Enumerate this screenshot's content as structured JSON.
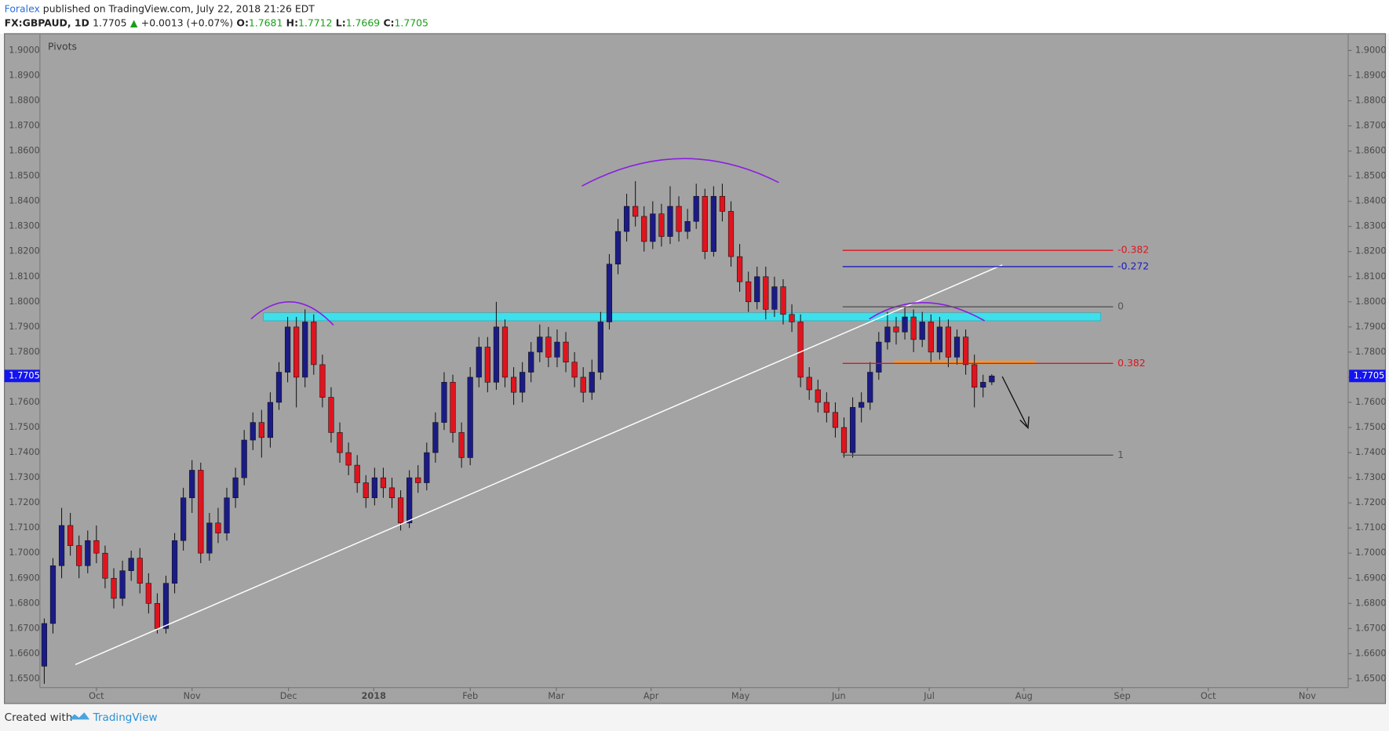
{
  "header": {
    "author": "Foralex",
    "published": "published on TradingView.com, July 22, 2018 21:26 EDT",
    "symbol": "FX:GBPAUD, 1D",
    "arrow": "▲",
    "change": "+0.0013 (+0.07%)",
    "o": "O:",
    "h": "H:",
    "l": "L:",
    "c": "C:"
  },
  "footer": {
    "created_with": "Created with",
    "brand": "TradingView"
  },
  "chart_data": {
    "type": "candlestick",
    "indicator": "Pivots",
    "up_color": "#1b1b86",
    "down_color": "#e0141e",
    "ylim": [
      1.6465,
      1.906
    ],
    "yticks": [
      {
        "value": 1.65,
        "label": "1.6500"
      },
      {
        "value": 1.66,
        "label": "1.6600"
      },
      {
        "value": 1.67,
        "label": "1.6700"
      },
      {
        "value": 1.68,
        "label": "1.6800"
      },
      {
        "value": 1.69,
        "label": "1.6900"
      },
      {
        "value": 1.7,
        "label": "1.7000"
      },
      {
        "value": 1.71,
        "label": "1.7100"
      },
      {
        "value": 1.72,
        "label": "1.7200"
      },
      {
        "value": 1.73,
        "label": "1.7300"
      },
      {
        "value": 1.74,
        "label": "1.7400"
      },
      {
        "value": 1.75,
        "label": "1.7500"
      },
      {
        "value": 1.76,
        "label": "1.7600"
      },
      {
        "value": 1.77,
        "label": "1.7700"
      },
      {
        "value": 1.78,
        "label": "1.7800"
      },
      {
        "value": 1.79,
        "label": "1.7900"
      },
      {
        "value": 1.8,
        "label": "1.8000"
      },
      {
        "value": 1.81,
        "label": "1.8100"
      },
      {
        "value": 1.82,
        "label": "1.8200"
      },
      {
        "value": 1.83,
        "label": "1.8300"
      },
      {
        "value": 1.84,
        "label": "1.8400"
      },
      {
        "value": 1.85,
        "label": "1.8500"
      },
      {
        "value": 1.86,
        "label": "1.8600"
      },
      {
        "value": 1.87,
        "label": "1.8700"
      },
      {
        "value": 1.88,
        "label": "1.8800"
      },
      {
        "value": 1.89,
        "label": "1.8900"
      },
      {
        "value": 1.9,
        "label": "1.9000"
      }
    ],
    "xlim": [
      -0.5,
      150
    ],
    "xticks": [
      {
        "value": 6,
        "label": "Oct"
      },
      {
        "value": 17,
        "label": "Nov"
      },
      {
        "value": 28.1,
        "label": "Dec"
      },
      {
        "value": 37.9,
        "label": "2018"
      },
      {
        "value": 49,
        "label": "Feb"
      },
      {
        "value": 58.9,
        "label": "Mar"
      },
      {
        "value": 69.8,
        "label": "Apr"
      },
      {
        "value": 80.1,
        "label": "May"
      },
      {
        "value": 91.4,
        "label": "Jun"
      },
      {
        "value": 101.8,
        "label": "Jul"
      },
      {
        "value": 112.7,
        "label": "Aug"
      },
      {
        "value": 124,
        "label": "Sep"
      },
      {
        "value": 133.9,
        "label": "Oct"
      },
      {
        "value": 145.3,
        "label": "Nov"
      }
    ],
    "ohlc": [
      [
        1.655,
        1.674,
        1.648,
        1.672
      ],
      [
        1.672,
        1.698,
        1.668,
        1.695
      ],
      [
        1.695,
        1.718,
        1.69,
        1.711
      ],
      [
        1.711,
        1.716,
        1.699,
        1.703
      ],
      [
        1.703,
        1.707,
        1.69,
        1.695
      ],
      [
        1.695,
        1.709,
        1.692,
        1.705
      ],
      [
        1.705,
        1.711,
        1.696,
        1.7
      ],
      [
        1.7,
        1.703,
        1.686,
        1.69
      ],
      [
        1.69,
        1.694,
        1.678,
        1.682
      ],
      [
        1.682,
        1.697,
        1.679,
        1.693
      ],
      [
        1.693,
        1.701,
        1.689,
        1.698
      ],
      [
        1.698,
        1.702,
        1.684,
        1.688
      ],
      [
        1.688,
        1.692,
        1.676,
        1.68
      ],
      [
        1.68,
        1.684,
        1.668,
        1.67
      ],
      [
        1.67,
        1.691,
        1.668,
        1.688
      ],
      [
        1.688,
        1.708,
        1.684,
        1.705
      ],
      [
        1.705,
        1.726,
        1.701,
        1.722
      ],
      [
        1.722,
        1.737,
        1.716,
        1.733
      ],
      [
        1.733,
        1.736,
        1.696,
        1.7
      ],
      [
        1.7,
        1.716,
        1.697,
        1.712
      ],
      [
        1.712,
        1.718,
        1.704,
        1.708
      ],
      [
        1.708,
        1.726,
        1.705,
        1.722
      ],
      [
        1.722,
        1.734,
        1.718,
        1.73
      ],
      [
        1.73,
        1.749,
        1.727,
        1.745
      ],
      [
        1.745,
        1.756,
        1.741,
        1.752
      ],
      [
        1.752,
        1.757,
        1.738,
        1.746
      ],
      [
        1.746,
        1.764,
        1.742,
        1.76
      ],
      [
        1.76,
        1.776,
        1.757,
        1.772
      ],
      [
        1.772,
        1.794,
        1.768,
        1.79
      ],
      [
        1.79,
        1.794,
        1.758,
        1.77
      ],
      [
        1.77,
        1.797,
        1.766,
        1.792
      ],
      [
        1.792,
        1.795,
        1.771,
        1.775
      ],
      [
        1.775,
        1.779,
        1.758,
        1.762
      ],
      [
        1.762,
        1.766,
        1.744,
        1.748
      ],
      [
        1.748,
        1.752,
        1.736,
        1.74
      ],
      [
        1.74,
        1.744,
        1.731,
        1.735
      ],
      [
        1.735,
        1.739,
        1.724,
        1.728
      ],
      [
        1.728,
        1.731,
        1.718,
        1.722
      ],
      [
        1.722,
        1.734,
        1.719,
        1.73
      ],
      [
        1.73,
        1.734,
        1.722,
        1.726
      ],
      [
        1.726,
        1.73,
        1.718,
        1.722
      ],
      [
        1.722,
        1.725,
        1.709,
        1.712
      ],
      [
        1.712,
        1.733,
        1.71,
        1.73
      ],
      [
        1.73,
        1.735,
        1.724,
        1.728
      ],
      [
        1.728,
        1.744,
        1.725,
        1.74
      ],
      [
        1.74,
        1.756,
        1.736,
        1.752
      ],
      [
        1.752,
        1.772,
        1.749,
        1.768
      ],
      [
        1.768,
        1.771,
        1.744,
        1.748
      ],
      [
        1.748,
        1.752,
        1.734,
        1.738
      ],
      [
        1.738,
        1.774,
        1.735,
        1.77
      ],
      [
        1.77,
        1.786,
        1.766,
        1.782
      ],
      [
        1.782,
        1.786,
        1.764,
        1.768
      ],
      [
        1.768,
        1.8,
        1.765,
        1.79
      ],
      [
        1.79,
        1.793,
        1.766,
        1.77
      ],
      [
        1.77,
        1.774,
        1.759,
        1.764
      ],
      [
        1.764,
        1.776,
        1.76,
        1.772
      ],
      [
        1.772,
        1.784,
        1.768,
        1.78
      ],
      [
        1.78,
        1.791,
        1.776,
        1.786
      ],
      [
        1.786,
        1.79,
        1.774,
        1.778
      ],
      [
        1.778,
        1.789,
        1.774,
        1.784
      ],
      [
        1.784,
        1.788,
        1.772,
        1.776
      ],
      [
        1.776,
        1.78,
        1.766,
        1.77
      ],
      [
        1.77,
        1.774,
        1.76,
        1.764
      ],
      [
        1.764,
        1.777,
        1.761,
        1.772
      ],
      [
        1.772,
        1.796,
        1.769,
        1.792
      ],
      [
        1.792,
        1.819,
        1.789,
        1.815
      ],
      [
        1.815,
        1.833,
        1.811,
        1.828
      ],
      [
        1.828,
        1.843,
        1.824,
        1.838
      ],
      [
        1.838,
        1.848,
        1.83,
        1.834
      ],
      [
        1.834,
        1.838,
        1.82,
        1.824
      ],
      [
        1.824,
        1.84,
        1.821,
        1.835
      ],
      [
        1.835,
        1.839,
        1.822,
        1.826
      ],
      [
        1.826,
        1.846,
        1.823,
        1.838
      ],
      [
        1.838,
        1.842,
        1.824,
        1.828
      ],
      [
        1.828,
        1.837,
        1.825,
        1.832
      ],
      [
        1.832,
        1.847,
        1.829,
        1.842
      ],
      [
        1.842,
        1.845,
        1.817,
        1.82
      ],
      [
        1.82,
        1.846,
        1.818,
        1.842
      ],
      [
        1.842,
        1.847,
        1.832,
        1.836
      ],
      [
        1.836,
        1.84,
        1.814,
        1.818
      ],
      [
        1.818,
        1.823,
        1.804,
        1.808
      ],
      [
        1.808,
        1.812,
        1.796,
        1.8
      ],
      [
        1.8,
        1.814,
        1.797,
        1.81
      ],
      [
        1.81,
        1.814,
        1.793,
        1.797
      ],
      [
        1.797,
        1.81,
        1.794,
        1.806
      ],
      [
        1.806,
        1.809,
        1.791,
        1.795
      ],
      [
        1.795,
        1.799,
        1.788,
        1.792
      ],
      [
        1.792,
        1.795,
        1.766,
        1.77
      ],
      [
        1.77,
        1.774,
        1.761,
        1.765
      ],
      [
        1.765,
        1.769,
        1.756,
        1.76
      ],
      [
        1.76,
        1.764,
        1.752,
        1.756
      ],
      [
        1.756,
        1.76,
        1.746,
        1.75
      ],
      [
        1.75,
        1.754,
        1.738,
        1.74
      ],
      [
        1.74,
        1.762,
        1.738,
        1.758
      ],
      [
        1.758,
        1.764,
        1.752,
        1.76
      ],
      [
        1.76,
        1.776,
        1.757,
        1.772
      ],
      [
        1.772,
        1.788,
        1.769,
        1.784
      ],
      [
        1.784,
        1.796,
        1.781,
        1.79
      ],
      [
        1.79,
        1.794,
        1.783,
        1.788
      ],
      [
        1.788,
        1.798,
        1.785,
        1.794
      ],
      [
        1.794,
        1.797,
        1.78,
        1.785
      ],
      [
        1.785,
        1.796,
        1.782,
        1.792
      ],
      [
        1.792,
        1.795,
        1.776,
        1.78
      ],
      [
        1.78,
        1.794,
        1.777,
        1.79
      ],
      [
        1.79,
        1.793,
        1.774,
        1.778
      ],
      [
        1.778,
        1.789,
        1.775,
        1.786
      ],
      [
        1.786,
        1.789,
        1.771,
        1.775
      ],
      [
        1.775,
        1.779,
        1.758,
        1.766
      ],
      [
        1.766,
        1.771,
        1.762,
        1.768
      ],
      [
        1.7681,
        1.7712,
        1.7669,
        1.7705
      ]
    ],
    "fib": {
      "levels": [
        -0.382,
        -0.272,
        0,
        0.382,
        1
      ],
      "prices": [
        1.8205,
        1.814,
        1.798,
        1.7755,
        1.739
      ],
      "colors": [
        "#e0141e",
        "#1c1cc0",
        "#555555",
        "#e0141e",
        "#555555"
      ]
    },
    "price_tag_color": "#1414f0"
  }
}
